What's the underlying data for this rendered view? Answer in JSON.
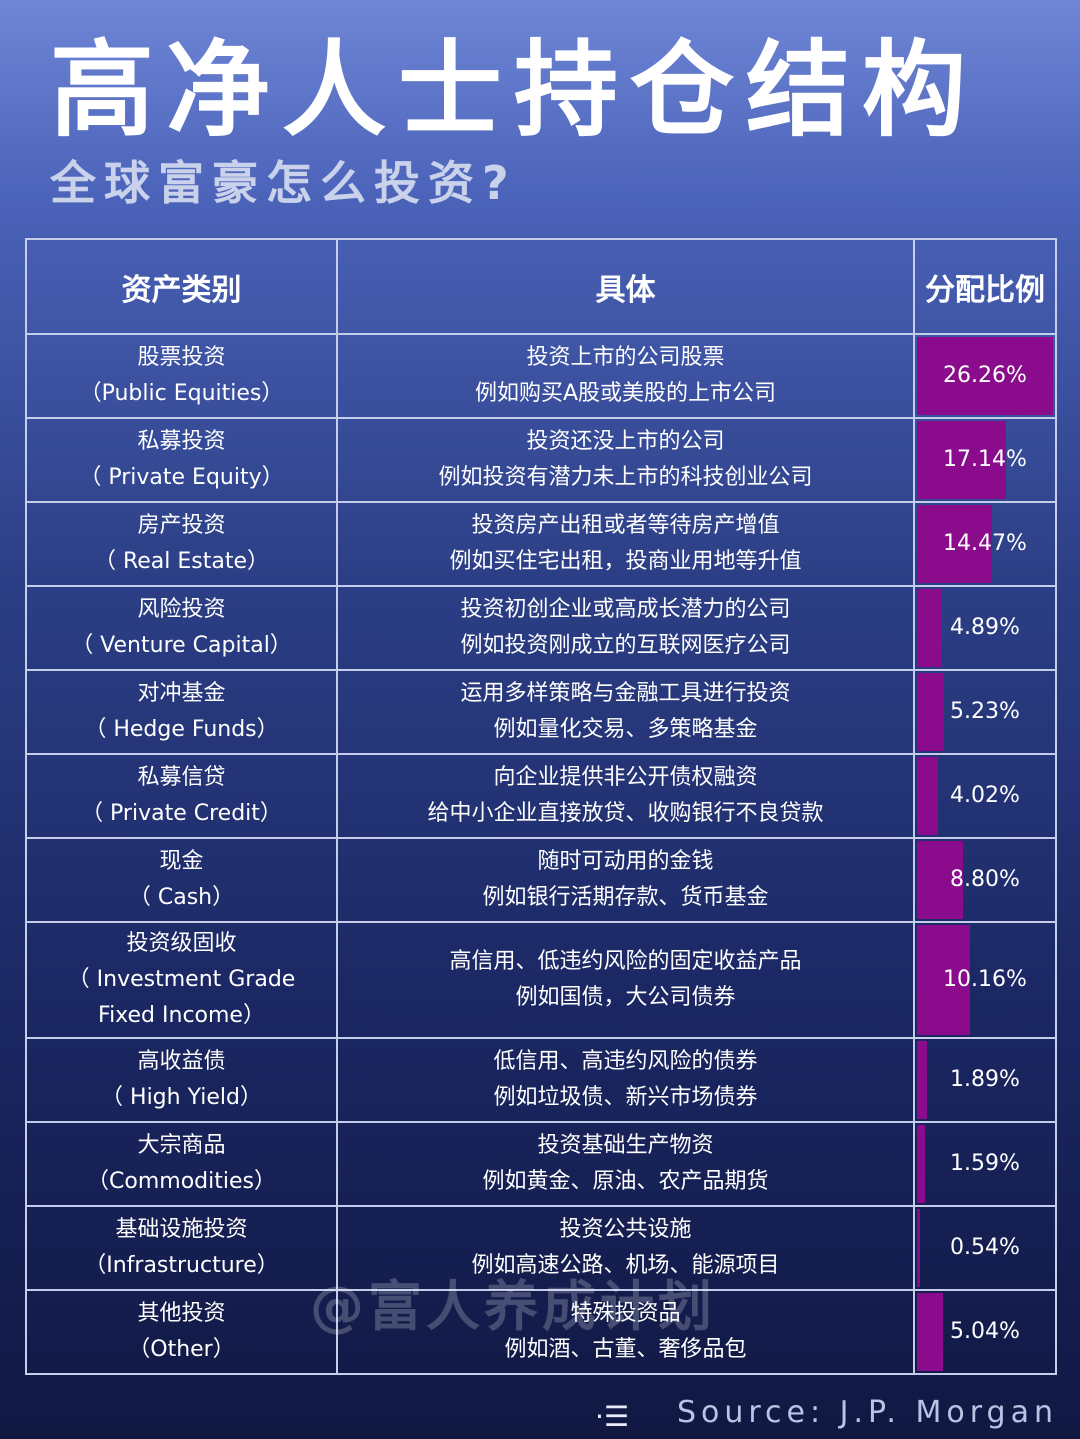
{
  "title": "高净人士持仓结构",
  "subtitle": "全球富豪怎么投资?",
  "table": {
    "headers": [
      "资产类别",
      "具体",
      "分配比例"
    ],
    "rows": [
      {
        "category_cn": "股票投资",
        "category_en": "（Public Equities）",
        "desc1": "投资上市的公司股票",
        "desc2": "例如购买A股或美股的上市公司",
        "pct_label": "26.26%",
        "pct": 26.26
      },
      {
        "category_cn": "私募投资",
        "category_en": "（ Private Equity）",
        "desc1": "投资还没上市的公司",
        "desc2": "例如投资有潜力未上市的科技创业公司",
        "pct_label": "17.14%",
        "pct": 17.14
      },
      {
        "category_cn": "房产投资",
        "category_en": "（ Real Estate）",
        "desc1": "投资房产出租或者等待房产增值",
        "desc2": "例如买住宅出租，投商业用地等升值",
        "pct_label": "14.47%",
        "pct": 14.47
      },
      {
        "category_cn": "风险投资",
        "category_en": "（ Venture Capital）",
        "desc1": "投资初创企业或高成长潜力的公司",
        "desc2": "例如投资刚成立的互联网医疗公司",
        "pct_label": "4.89%",
        "pct": 4.89
      },
      {
        "category_cn": "对冲基金",
        "category_en": "（ Hedge Funds）",
        "desc1": "运用多样策略与金融工具进行投资",
        "desc2": "例如量化交易、多策略基金",
        "pct_label": "5.23%",
        "pct": 5.23
      },
      {
        "category_cn": "私募信贷",
        "category_en": "（ Private Credit）",
        "desc1": "向企业提供非公开债权融资",
        "desc2": "给中小企业直接放贷、收购银行不良贷款",
        "pct_label": "4.02%",
        "pct": 4.02
      },
      {
        "category_cn": "现金",
        "category_en": "（ Cash）",
        "desc1": "随时可动用的金钱",
        "desc2": "例如银行活期存款、货币基金",
        "pct_label": "8.80%",
        "pct": 8.8
      },
      {
        "category_cn": "投资级固收",
        "category_en": "（ Investment Grade",
        "category_en2": "Fixed Income）",
        "desc1": "高信用、低违约风险的固定收益产品",
        "desc2": "例如国债，大公司债券",
        "pct_label": "10.16%",
        "pct": 10.16
      },
      {
        "category_cn": "高收益债",
        "category_en": "（ High Yield）",
        "desc1": "低信用、高违约风险的债券",
        "desc2": "例如垃圾债、新兴市场债券",
        "pct_label": "1.89%",
        "pct": 1.89
      },
      {
        "category_cn": "大宗商品",
        "category_en": "（Commodities）",
        "desc1": "投资基础生产物资",
        "desc2": "例如黄金、原油、农产品期货",
        "pct_label": "1.59%",
        "pct": 1.59
      },
      {
        "category_cn": "基础设施投资",
        "category_en": "（Infrastructure）",
        "desc1": "投资公共设施",
        "desc2": "例如高速公路、机场、能源项目",
        "pct_label": "0.54%",
        "pct": 0.54
      },
      {
        "category_cn": "其他投资",
        "category_en": "（Other）",
        "desc1": "特殊投资品",
        "desc2": "例如酒、古董、奢侈品包",
        "pct_label": "5.04%",
        "pct": 5.04
      }
    ]
  },
  "bar_color": "#8a0c8c",
  "bar_full_scale_pct": 26.26,
  "watermark": "@富人养成计划",
  "source": "Source: J.P. Morgan",
  "menu_icon": "menu-icon"
}
